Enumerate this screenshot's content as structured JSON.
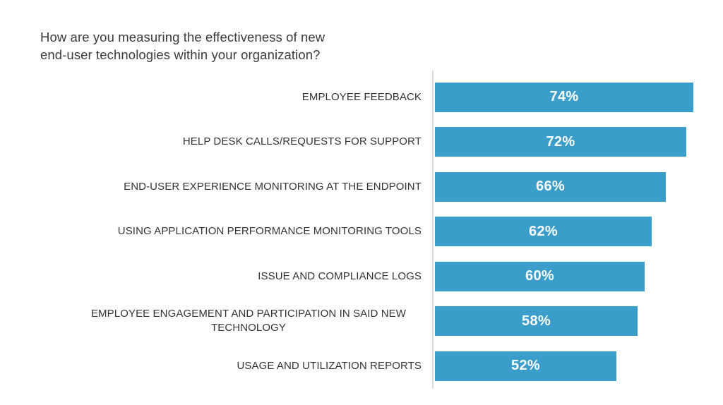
{
  "title": {
    "lines": [
      "How are you measuring the effectiveness of new",
      "end-user technologies within your organization?"
    ]
  },
  "colors": {
    "background": "#ffffff",
    "bar": "#3a9dca",
    "axis_line": "#d9d9d9",
    "title_text": "#3b3b3b",
    "category_text": "#333333",
    "value_text": "#ffffff"
  },
  "chart_data": {
    "type": "bar",
    "orientation": "horizontal",
    "title": "How are you measuring the effectiveness of new end-user technologies within your organization?",
    "categories": [
      "EMPLOYEE FEEDBACK",
      "HELP DESK CALLS/REQUESTS FOR SUPPORT",
      "END-USER EXPERIENCE MONITORING AT THE ENDPOINT",
      "USING APPLICATION PERFORMANCE MONITORING TOOLS",
      "ISSUE AND COMPLIANCE LOGS",
      "EMPLOYEE ENGAGEMENT AND PARTICIPATION IN SAID NEW TECHNOLOGY",
      "USAGE AND UTILIZATION REPORTS"
    ],
    "values": [
      74,
      72,
      66,
      62,
      60,
      58,
      52
    ],
    "value_suffix": "%",
    "value_labels_position": "inside-center",
    "xlabel": "",
    "ylabel": "",
    "xlim": [
      0,
      82
    ],
    "grid": false,
    "legend": null
  }
}
